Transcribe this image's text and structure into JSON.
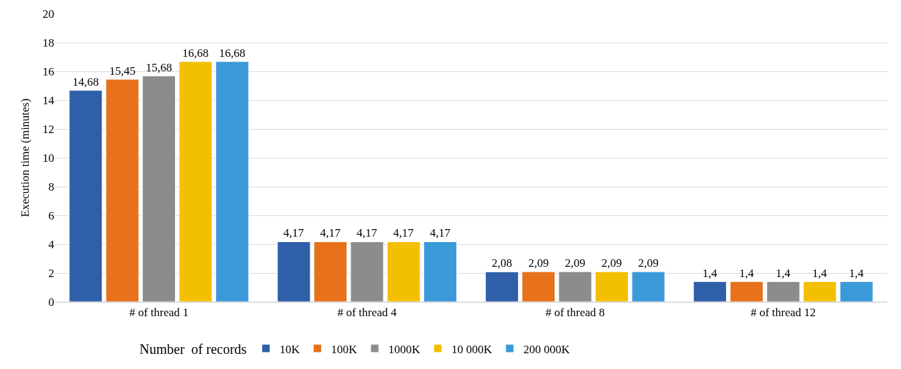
{
  "chart_data": {
    "type": "bar",
    "ylabel": "Execution time (minutes)",
    "legend_title": "Number  of records",
    "categories": [
      "# of thread 1",
      "# of thread 4",
      "# of thread 8",
      "# of thread 12"
    ],
    "series": [
      {
        "name": "10K",
        "color": "#2e5fa8",
        "values": [
          14.68,
          4.17,
          2.08,
          1.4
        ],
        "value_labels": [
          "14,68",
          "4,17",
          "2,08",
          "1,4"
        ]
      },
      {
        "name": "100K",
        "color": "#e8711c",
        "values": [
          15.45,
          4.17,
          2.09,
          1.4
        ],
        "value_labels": [
          "15,45",
          "4,17",
          "2,09",
          "1,4"
        ]
      },
      {
        "name": "1000K",
        "color": "#8c8c8c",
        "values": [
          15.68,
          4.17,
          2.09,
          1.4
        ],
        "value_labels": [
          "15,68",
          "4,17",
          "2,09",
          "1,4"
        ]
      },
      {
        "name": "10 000K",
        "color": "#f2c000",
        "values": [
          16.68,
          4.17,
          2.09,
          1.4
        ],
        "value_labels": [
          "16,68",
          "4,17",
          "2,09",
          "1,4"
        ]
      },
      {
        "name": "200 000K",
        "color": "#3a9ad9",
        "values": [
          16.68,
          4.17,
          2.09,
          1.4
        ],
        "value_labels": [
          "16,68",
          "4,17",
          "2,09",
          "1,4"
        ]
      }
    ],
    "ylim": [
      0,
      20
    ],
    "yticks": [
      0,
      2,
      4,
      6,
      8,
      10,
      12,
      14,
      16,
      18,
      20
    ],
    "grid": "y",
    "legend": "bottom"
  }
}
